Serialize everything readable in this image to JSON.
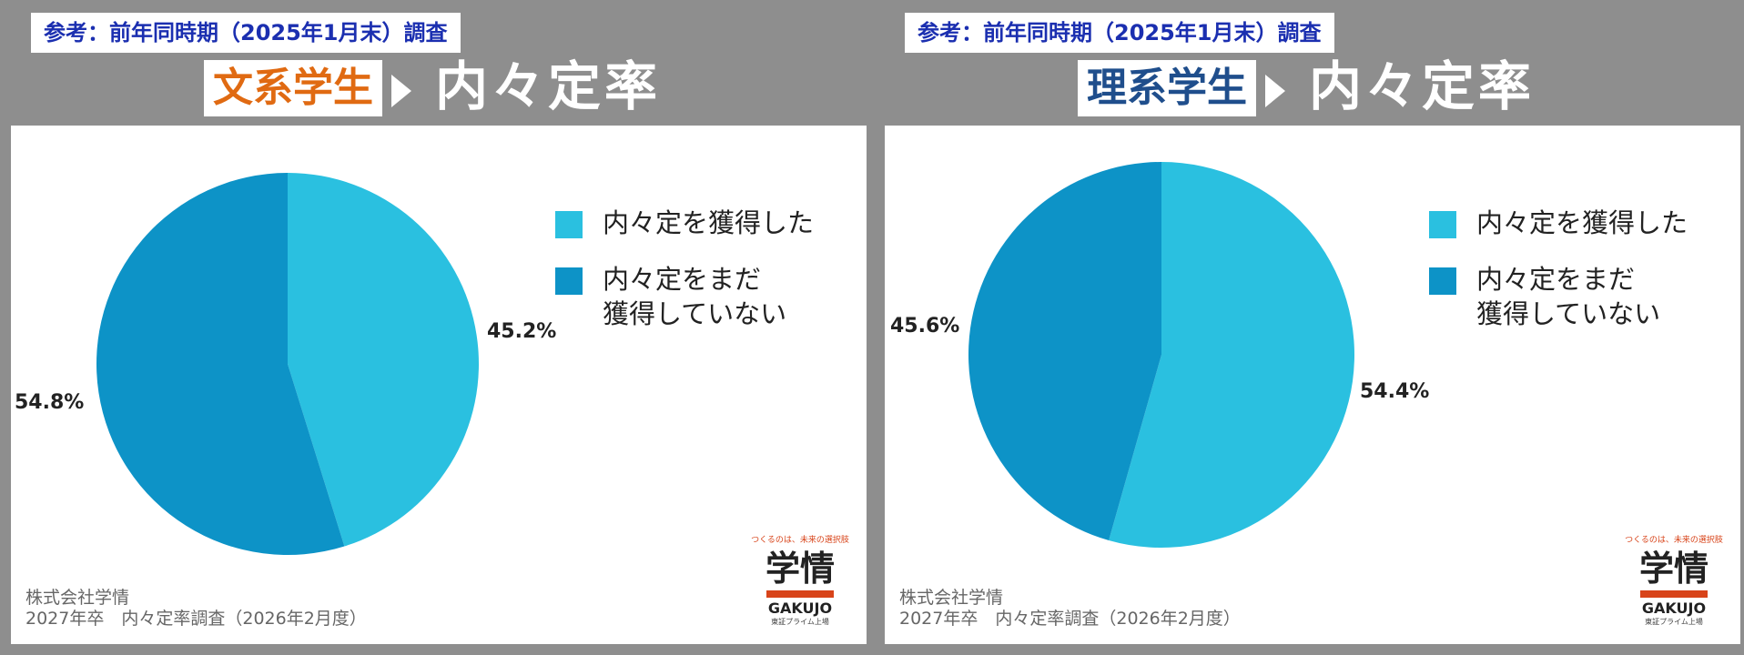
{
  "panels": [
    {
      "ref_tag": "参考：前年同時期（2025年1月末）調査",
      "title_group": "文系学生",
      "title_rate": "内々定率",
      "legend": [
        "内々定を獲得した",
        "内々定をまだ\n獲得していない"
      ],
      "footer_company": "株式会社学情",
      "footer_survey": "2027年卒　内々定率調査（2026年2月度）",
      "logo": {
        "tagline": "つくるのは、未来の選択肢",
        "mark": "学情",
        "name": "GAKUJO",
        "sub": "東証プライム上場"
      }
    },
    {
      "ref_tag": "参考：前年同時期（2025年1月末）調査",
      "title_group": "理系学生",
      "title_rate": "内々定率",
      "legend": [
        "内々定を獲得した",
        "内々定をまだ\n獲得していない"
      ],
      "footer_company": "株式会社学情",
      "footer_survey": "2027年卒　内々定率調査（2026年2月度）",
      "logo": {
        "tagline": "つくるのは、未来の選択肢",
        "mark": "学情",
        "name": "GAKUJO",
        "sub": "東証プライム上場"
      }
    }
  ],
  "colors": {
    "obtained": "#2ac0e0",
    "not_yet": "#0d93c7"
  },
  "chart_data": [
    {
      "type": "pie",
      "title": "",
      "slices": [
        {
          "label": "内々定を獲得した",
          "value": 45.2,
          "display": "45.2%"
        },
        {
          "label": "内々定をまだ獲得していない",
          "value": 54.8,
          "display": "54.8%"
        }
      ]
    },
    {
      "type": "pie",
      "title": "",
      "slices": [
        {
          "label": "内々定を獲得した",
          "value": 54.4,
          "display": "54.4%"
        },
        {
          "label": "内々定をまだ獲得していない",
          "value": 45.6,
          "display": "45.6%"
        }
      ]
    }
  ]
}
